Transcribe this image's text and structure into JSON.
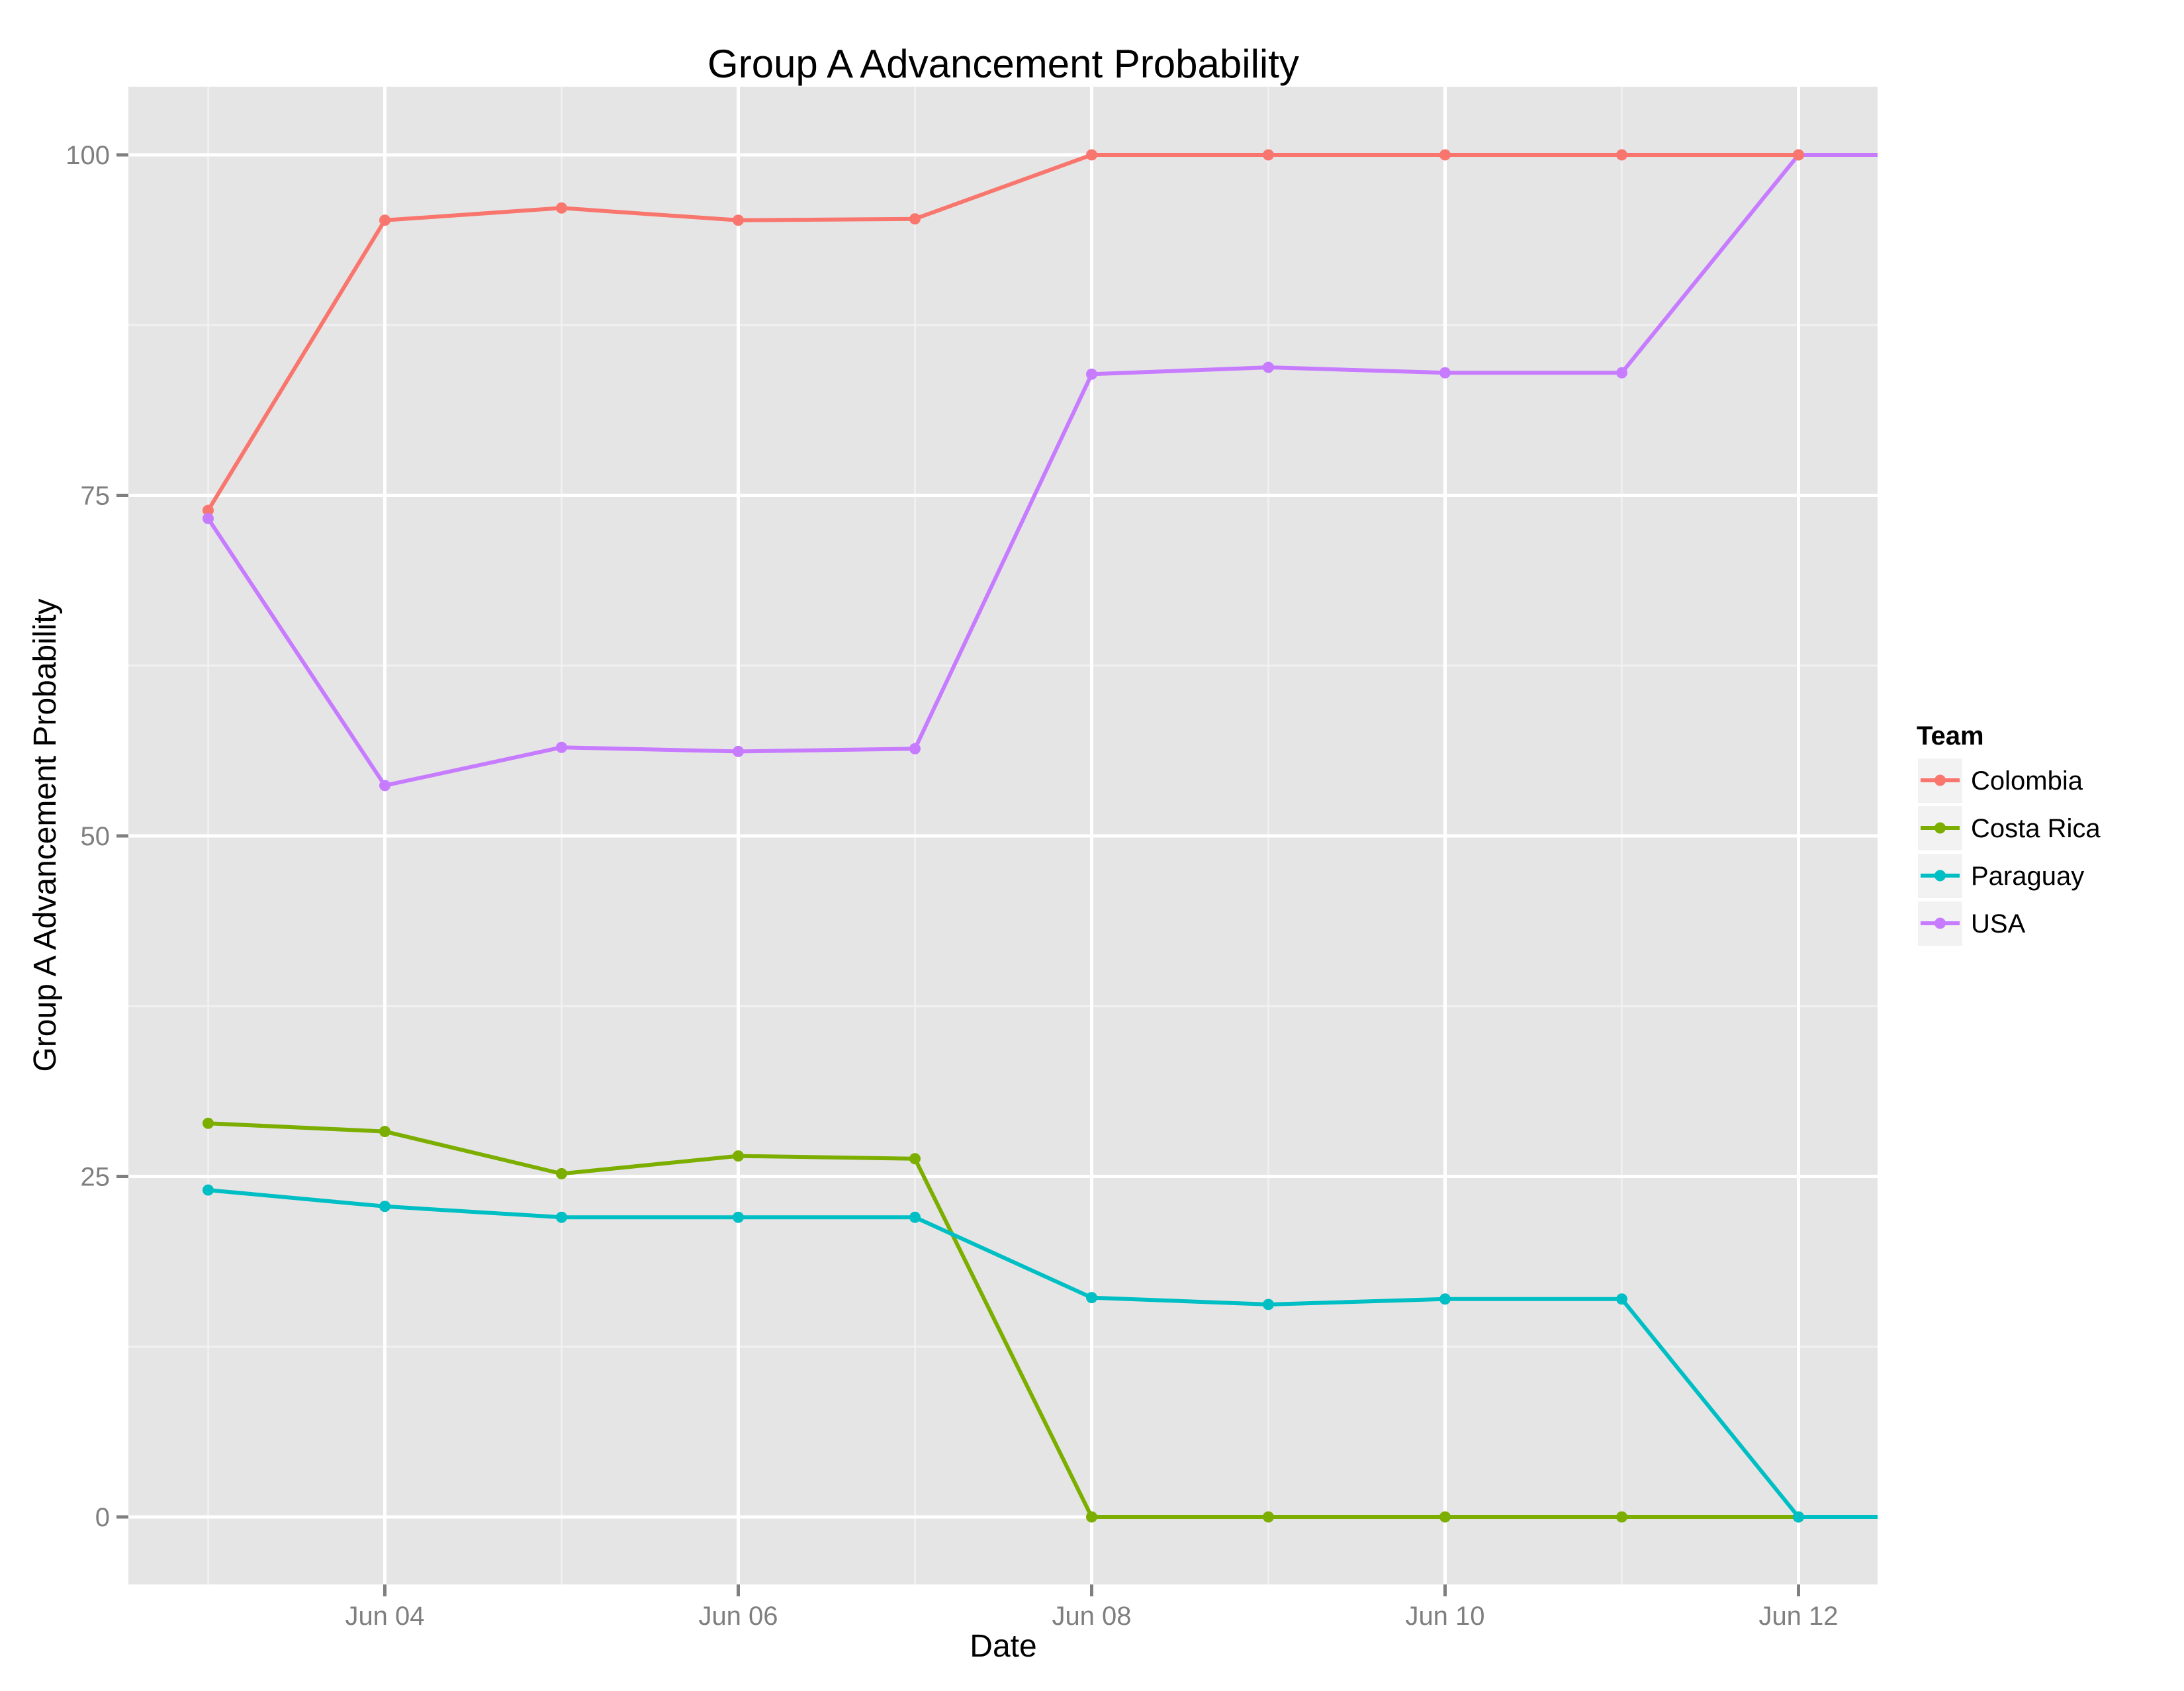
{
  "chart_data": {
    "type": "line",
    "title": "Group A Advancement Probability",
    "xlabel": "Date",
    "ylabel": "Group A Advancement Probability",
    "x": [
      "Jun 03",
      "Jun 04",
      "Jun 05",
      "Jun 06",
      "Jun 07",
      "Jun 08",
      "Jun 09",
      "Jun 10",
      "Jun 11",
      "Jun 12"
    ],
    "x_tick_labels": [
      "Jun 04",
      "Jun 06",
      "Jun 08",
      "Jun 10",
      "Jun 12"
    ],
    "y_tick_labels": [
      "0",
      "25",
      "50",
      "75",
      "100"
    ],
    "ylim": [
      -5,
      105
    ],
    "grid": true,
    "legend": {
      "title": "Team",
      "position": "right"
    },
    "series": [
      {
        "name": "Colombia",
        "color": "#F8766D",
        "values": [
          73.9,
          95.2,
          96.1,
          95.2,
          95.3,
          100,
          100,
          100,
          100,
          100
        ]
      },
      {
        "name": "Costa Rica",
        "color": "#7CAE00",
        "values": [
          28.9,
          28.3,
          25.2,
          26.5,
          26.3,
          0,
          0,
          0,
          0,
          0
        ]
      },
      {
        "name": "Paraguay",
        "color": "#00BFC4",
        "values": [
          24.0,
          22.8,
          22.0,
          22.0,
          22.0,
          16.1,
          15.6,
          16.0,
          16.0,
          0
        ]
      },
      {
        "name": "USA",
        "color": "#C77CFF",
        "values": [
          73.3,
          53.7,
          56.5,
          56.2,
          56.4,
          83.9,
          84.4,
          84.0,
          84.0,
          100
        ]
      }
    ]
  }
}
